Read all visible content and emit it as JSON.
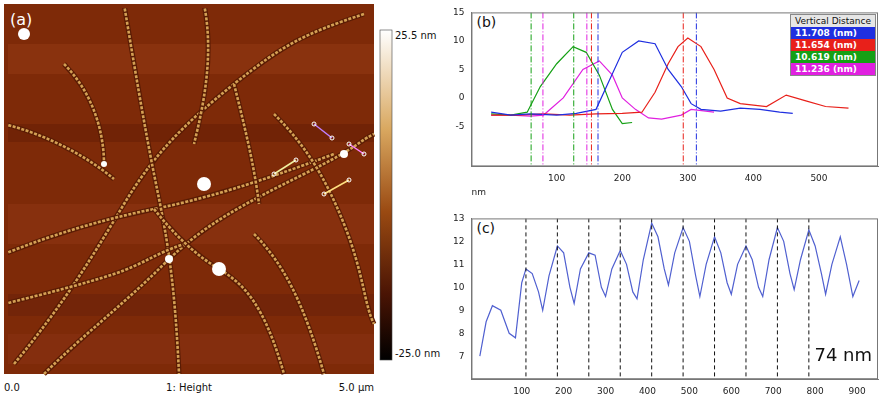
{
  "image_panel": {
    "letter": "(a)",
    "channel_label": "1: Height",
    "xlim": [
      0,
      5
    ],
    "xticks": [
      {
        "value": 0,
        "label": "0.0"
      },
      {
        "value": 5,
        "label": "5.0 µm"
      }
    ],
    "colorbar_range": [
      -25.0,
      25.5
    ],
    "colorbar_ticks": [
      {
        "value": -25.0,
        "label": "-25.0 nm"
      },
      {
        "value": 25.5,
        "label": "25.5 nm"
      }
    ]
  },
  "chart_data": [
    {
      "letter": "(b)",
      "type": "line",
      "x_label": "nm",
      "legend_title": "Vertical Distance",
      "legend": "top-right",
      "grid": false,
      "xlim": [
        -30,
        590
      ],
      "xticks": [
        100,
        200,
        300,
        400,
        500
      ],
      "ylim": [
        -12,
        15
      ],
      "yticks": [
        -5,
        0,
        5,
        10,
        15
      ],
      "series": [
        {
          "name": "11.708 (nm)",
          "color": "#1f2fe0",
          "x": [
            0,
            30,
            60,
            100,
            130,
            160,
            180,
            200,
            225,
            250,
            270,
            290,
            305,
            320,
            350,
            380,
            410,
            440,
            460
          ],
          "values": [
            -2.5,
            -3,
            -2.8,
            -3,
            -2.7,
            -2,
            3,
            8,
            10,
            9.5,
            5,
            2,
            -1,
            -2,
            -2.3,
            -1.8,
            -2,
            -2.5,
            -2.7
          ],
          "cursors": [
            163,
            313
          ]
        },
        {
          "name": "11.654 (nm)",
          "color": "#e8201a",
          "x": [
            0,
            40,
            80,
            120,
            160,
            200,
            230,
            250,
            270,
            285,
            300,
            320,
            340,
            360,
            380,
            420,
            450,
            480,
            510,
            545
          ],
          "values": [
            -3,
            -3,
            -2.8,
            -3,
            -2.8,
            -2.7,
            -2.5,
            1,
            6,
            9,
            10.5,
            9,
            5,
            0,
            -1,
            -1.5,
            0.5,
            -0.5,
            -1.5,
            -1.8
          ],
          "cursors": [
            153,
            293
          ]
        },
        {
          "name": "10.619 (nm)",
          "color": "#15a015",
          "x": [
            0,
            30,
            55,
            75,
            100,
            125,
            145,
            165,
            185,
            200,
            215
          ],
          "values": [
            -2.8,
            -3,
            -2.5,
            2,
            6,
            9,
            8,
            4,
            -2,
            -4.5,
            -4.3
          ],
          "cursors": [
            61,
            126
          ]
        },
        {
          "name": "11.236 (nm)",
          "color": "#e020e0",
          "x": [
            0,
            30,
            60,
            80,
            110,
            140,
            165,
            185,
            200,
            220,
            240,
            260,
            290,
            305,
            340
          ],
          "values": [
            -3,
            -3,
            -3.2,
            -3,
            0,
            5,
            6.5,
            4,
            0,
            -2,
            -3.5,
            -3.7,
            -3,
            -2,
            -2.5
          ],
          "cursors": [
            79,
            146
          ]
        }
      ]
    },
    {
      "letter": "(c)",
      "type": "line",
      "grid": false,
      "color": "#5060d0",
      "xlim": [
        -20,
        950
      ],
      "xticks": [
        100,
        200,
        300,
        400,
        500,
        600,
        700,
        800,
        900
      ],
      "ylim": [
        6,
        13
      ],
      "yticks": [
        7,
        8,
        9,
        10,
        11,
        12,
        13
      ],
      "x": [
        0,
        15,
        30,
        50,
        70,
        85,
        100,
        110,
        125,
        140,
        150,
        165,
        185,
        200,
        215,
        225,
        240,
        260,
        275,
        290,
        300,
        315,
        335,
        350,
        365,
        375,
        390,
        410,
        425,
        440,
        450,
        465,
        485,
        500,
        515,
        525,
        540,
        560,
        575,
        590,
        600,
        615,
        635,
        650,
        665,
        675,
        690,
        710,
        725,
        740,
        750,
        765,
        785,
        800,
        815,
        825,
        840,
        860,
        875,
        890,
        905
      ],
      "values": [
        7.0,
        8.5,
        9.2,
        9.0,
        8.0,
        7.8,
        10.2,
        10.8,
        10.6,
        9.8,
        9.0,
        10.5,
        11.8,
        11.5,
        10.0,
        9.3,
        10.8,
        11.5,
        11.4,
        10.0,
        9.6,
        10.8,
        11.6,
        11.0,
        9.8,
        9.5,
        11.2,
        12.8,
        12.2,
        10.8,
        10.1,
        11.5,
        12.6,
        12.0,
        10.5,
        9.6,
        11.0,
        12.2,
        11.5,
        10.2,
        9.7,
        11.0,
        11.8,
        11.2,
        10.0,
        9.6,
        11.2,
        12.6,
        12.0,
        10.6,
        9.9,
        11.2,
        12.5,
        11.8,
        10.6,
        9.7,
        11.0,
        12.2,
        11.0,
        9.6,
        10.3
      ],
      "peak_lines": [
        110,
        185,
        260,
        335,
        410,
        485,
        560,
        635,
        710,
        785
      ],
      "annotation": "74 nm"
    }
  ]
}
